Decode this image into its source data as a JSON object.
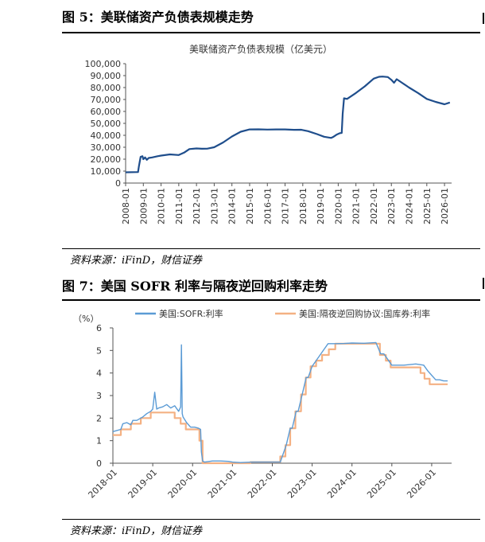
{
  "fig5": {
    "heading": "图 5：美联储资产负债表规模走势",
    "source": "资料来源：iFinD，财信证券",
    "chart_data": {
      "type": "line",
      "title": "美联储资产负债表规模（亿美元）",
      "ylim": [
        0,
        100000
      ],
      "yticks": [
        "0",
        "10,000",
        "20,000",
        "30,000",
        "40,000",
        "50,000",
        "60,000",
        "70,000",
        "80,000",
        "90,000",
        "100,000"
      ],
      "xticks": [
        "2008-01",
        "2009-01",
        "2010-01",
        "2011-01",
        "2012-01",
        "2013-01",
        "2014-01",
        "2015-01",
        "2016-01",
        "2017-01",
        "2018-01",
        "2019-01",
        "2020-01",
        "2021-01",
        "2022-01",
        "2023-01",
        "2024-01",
        "2025-01",
        "2026-01"
      ],
      "xlim": [
        2008.0,
        2026.4
      ],
      "series_color": "#1f4e8c",
      "series": [
        {
          "x": [
            2008.0,
            2008.7,
            2008.75,
            2008.85,
            2008.95,
            2009.0,
            2009.1,
            2009.2,
            2009.3,
            2009.5,
            2009.8,
            2010.0,
            2010.5,
            2011.0,
            2011.3,
            2011.6,
            2012.0,
            2012.3,
            2012.6,
            2013.0,
            2013.5,
            2014.0,
            2014.5,
            2015.0,
            2015.5,
            2016.0,
            2016.5,
            2017.0,
            2017.5,
            2017.9,
            2018.3,
            2018.8,
            2019.2,
            2019.6,
            2019.7,
            2019.9,
            2020.1,
            2020.2,
            2020.25,
            2020.33,
            2020.5,
            2021.0,
            2021.5,
            2022.0,
            2022.3,
            2022.5,
            2022.8,
            2023.0,
            2023.15,
            2023.3,
            2023.5,
            2024.0,
            2024.5,
            2025.0,
            2025.5,
            2026.0,
            2026.3
          ],
          "y": [
            9000,
            9200,
            14000,
            22000,
            22500,
            20000,
            21500,
            19500,
            21000,
            21500,
            22500,
            23000,
            24000,
            23500,
            25500,
            28500,
            29000,
            28700,
            28800,
            30000,
            34000,
            39000,
            43000,
            44900,
            45000,
            44800,
            44900,
            44900,
            44600,
            44700,
            43500,
            41000,
            38800,
            37800,
            38500,
            40500,
            41800,
            42000,
            58000,
            71000,
            70500,
            75500,
            81000,
            87500,
            89000,
            89200,
            88800,
            86500,
            84000,
            87000,
            85000,
            80000,
            75500,
            70500,
            68000,
            66000,
            67500
          ]
        }
      ]
    }
  },
  "fig7": {
    "heading": "图 7：美国 SOFR 利率与隔夜逆回购利率走势",
    "source": "资料来源：iFinD，财信证券",
    "chart_data": {
      "type": "line",
      "ylabel": "（%）",
      "ylim": [
        0,
        6
      ],
      "yticks": [
        "0",
        "1",
        "2",
        "3",
        "4",
        "5",
        "6"
      ],
      "xticks": [
        "2018-01",
        "2019-01",
        "2020-01",
        "2021-01",
        "2022-01",
        "2023-01",
        "2024-01",
        "2025-01",
        "2026-01"
      ],
      "xlim": [
        2018.0,
        2026.5
      ],
      "legend": [
        "美国:SOFR:利率",
        "美国:隔夜逆回购协议:国库券:利率"
      ],
      "series": [
        {
          "name": "美国:SOFR:利率",
          "color": "#5b9bd5",
          "x": [
            2018.0,
            2018.1,
            2018.2,
            2018.25,
            2018.35,
            2018.45,
            2018.5,
            2018.6,
            2018.7,
            2018.75,
            2018.85,
            2018.95,
            2019.0,
            2019.05,
            2019.1,
            2019.15,
            2019.25,
            2019.35,
            2019.45,
            2019.55,
            2019.65,
            2019.7,
            2019.72,
            2019.74,
            2019.76,
            2019.85,
            2019.95,
            2020.05,
            2020.15,
            2020.2,
            2020.22,
            2020.25,
            2020.3,
            2020.5,
            2020.7,
            2020.9,
            2021.0,
            2021.2,
            2021.5,
            2021.8,
            2022.0,
            2022.2,
            2022.25,
            2022.35,
            2022.45,
            2022.5,
            2022.6,
            2022.65,
            2022.75,
            2022.85,
            2022.9,
            2023.0,
            2023.1,
            2023.2,
            2023.3,
            2023.4,
            2023.5,
            2023.6,
            2023.8,
            2024.0,
            2024.3,
            2024.6,
            2024.72,
            2024.8,
            2024.9,
            2025.0,
            2025.3,
            2025.6,
            2025.8,
            2025.9,
            2026.0,
            2026.1,
            2026.2,
            2026.3,
            2026.4
          ],
          "y": [
            1.4,
            1.45,
            1.5,
            1.75,
            1.8,
            1.7,
            1.9,
            1.9,
            2.0,
            2.05,
            2.2,
            2.3,
            2.4,
            3.15,
            2.4,
            2.45,
            2.5,
            2.6,
            2.45,
            2.55,
            2.3,
            2.5,
            5.25,
            2.2,
            2.05,
            1.8,
            1.6,
            1.6,
            1.55,
            1.5,
            0.5,
            0.1,
            0.05,
            0.1,
            0.1,
            0.08,
            0.05,
            0.03,
            0.05,
            0.05,
            0.05,
            0.05,
            0.3,
            0.8,
            1.55,
            1.55,
            2.3,
            2.3,
            3.05,
            3.8,
            3.8,
            4.3,
            4.55,
            4.8,
            5.05,
            5.3,
            5.3,
            5.3,
            5.31,
            5.33,
            5.32,
            5.35,
            4.85,
            4.85,
            4.6,
            4.35,
            4.35,
            4.4,
            4.35,
            4.1,
            3.9,
            3.7,
            3.7,
            3.65,
            3.65
          ]
        },
        {
          "name": "美国:隔夜逆回购协议:国库券:利率",
          "color": "#f4b183",
          "x": [
            2018.0,
            2018.2,
            2018.2,
            2018.45,
            2018.45,
            2018.7,
            2018.7,
            2018.95,
            2018.95,
            2019.55,
            2019.55,
            2019.7,
            2019.7,
            2019.83,
            2019.83,
            2020.17,
            2020.17,
            2020.25,
            2020.25,
            2021.45,
            2021.45,
            2022.2,
            2022.2,
            2022.33,
            2022.33,
            2022.45,
            2022.45,
            2022.58,
            2022.58,
            2022.72,
            2022.72,
            2022.84,
            2022.84,
            2022.96,
            2022.96,
            2023.1,
            2023.1,
            2023.25,
            2023.25,
            2023.42,
            2023.42,
            2023.58,
            2023.58,
            2024.7,
            2024.7,
            2024.85,
            2024.85,
            2024.97,
            2024.97,
            2025.72,
            2025.72,
            2025.82,
            2025.82,
            2025.95,
            2025.95,
            2026.4
          ],
          "y": [
            1.25,
            1.25,
            1.5,
            1.5,
            1.75,
            1.75,
            2.0,
            2.0,
            2.25,
            2.25,
            2.0,
            2.0,
            1.75,
            1.75,
            1.5,
            1.5,
            1.0,
            1.0,
            0.0,
            0.0,
            0.05,
            0.05,
            0.3,
            0.3,
            0.8,
            0.8,
            1.55,
            1.55,
            2.3,
            2.3,
            3.05,
            3.05,
            3.8,
            3.8,
            4.3,
            4.3,
            4.55,
            4.55,
            4.8,
            4.8,
            5.05,
            5.05,
            5.3,
            5.3,
            4.8,
            4.8,
            4.55,
            4.55,
            4.25,
            4.25,
            4.0,
            4.0,
            3.75,
            3.75,
            3.5,
            3.5
          ]
        }
      ]
    }
  }
}
